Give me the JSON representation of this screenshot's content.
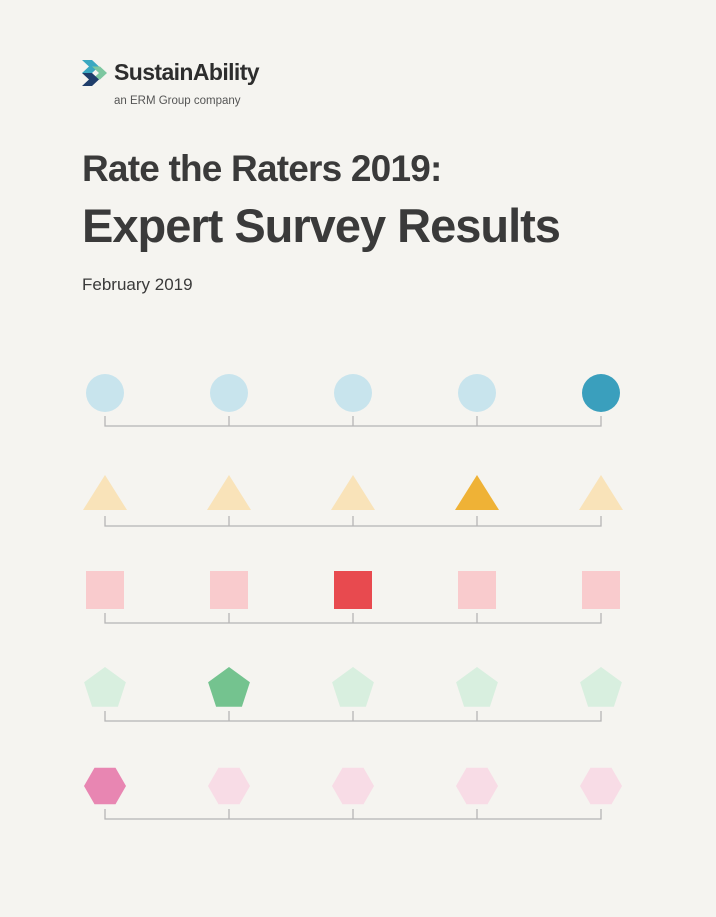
{
  "brand": {
    "name": "SustainAbility",
    "tagline": "an ERM Group company",
    "mark_colors": [
      "#3aa8c1",
      "#7cc7a0",
      "#1f3e6b"
    ]
  },
  "cover": {
    "title_line1": "Rate the Raters 2019:",
    "title_line2": "Expert Survey Results",
    "date": "February 2019"
  },
  "rating_rows": [
    {
      "shape": "circle",
      "highlight_index": 4,
      "light_color": "#c8e4ed",
      "dark_color": "#3a9fbd"
    },
    {
      "shape": "triangle",
      "highlight_index": 3,
      "light_color": "#f9e3b9",
      "dark_color": "#efb236"
    },
    {
      "shape": "square",
      "highlight_index": 2,
      "light_color": "#f9cbcd",
      "dark_color": "#e84a4f"
    },
    {
      "shape": "pentagon",
      "highlight_index": 1,
      "light_color": "#d8efdf",
      "dark_color": "#74c38f"
    },
    {
      "shape": "hexagon",
      "highlight_index": 0,
      "light_color": "#f8dce6",
      "dark_color": "#e886b2"
    }
  ],
  "scale_points": 5,
  "line_color": "#b5b5b5"
}
